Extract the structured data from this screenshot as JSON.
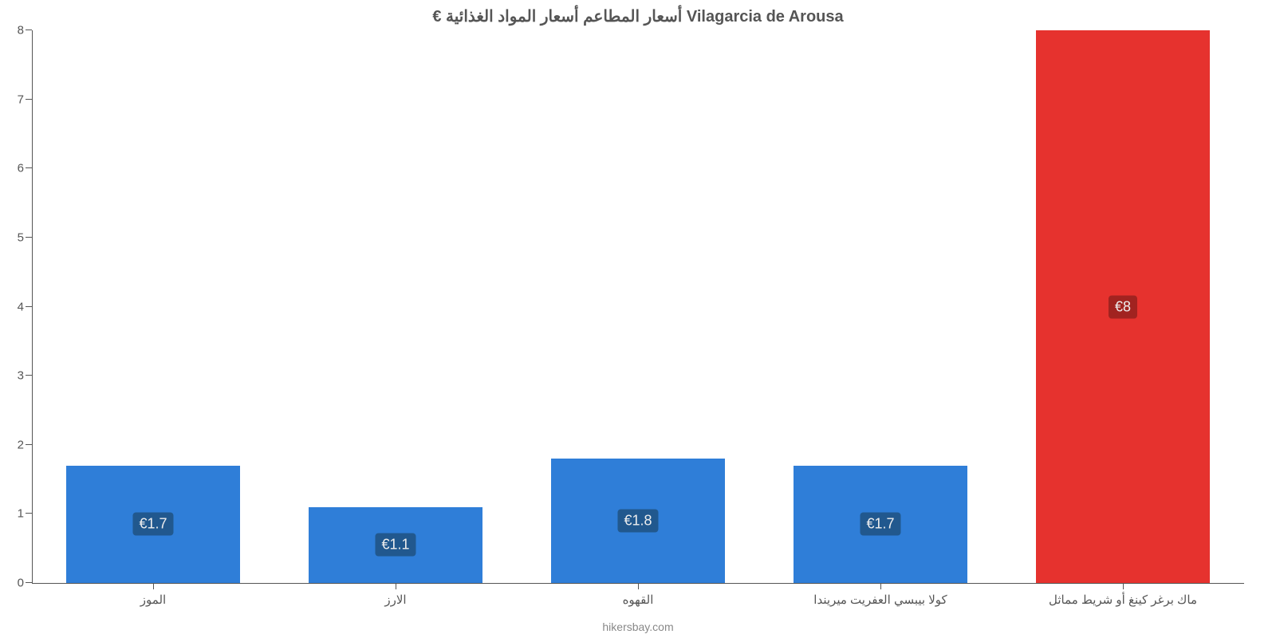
{
  "chart": {
    "type": "bar",
    "title": "Vilagarcia de Arousa أسعار المطاعم أسعار المواد الغذائية €",
    "title_fontsize": 20,
    "title_color": "#555555",
    "background_color": "#ffffff",
    "axis_color": "#555555",
    "tick_label_color": "#555555",
    "tick_fontsize": 15,
    "ylim": [
      0,
      8
    ],
    "ytick_step": 1,
    "yticks": [
      0,
      1,
      2,
      3,
      4,
      5,
      6,
      7,
      8
    ],
    "categories": [
      "ماك برغر كينغ أو شريط مماثل",
      "كولا بيبسي العفريت ميريندا",
      "القهوه",
      "الارز",
      "الموز"
    ],
    "values": [
      8,
      1.7,
      1.8,
      1.1,
      1.7
    ],
    "value_labels": [
      "€8",
      "€1.7",
      "€1.8",
      "€1.1",
      "€1.7"
    ],
    "bar_colors": [
      "#e6322e",
      "#2f7ed8",
      "#2f7ed8",
      "#2f7ed8",
      "#2f7ed8"
    ],
    "label_bg_colors": [
      "#a12320",
      "#21588e",
      "#21588e",
      "#21588e",
      "#21588e"
    ],
    "label_text_color": "#eeeeee",
    "label_fontsize": 18,
    "category_fontsize": 15,
    "bar_width_pct": 72,
    "footer": "hikersbay.com",
    "footer_color": "#888888",
    "footer_fontsize": 14
  }
}
